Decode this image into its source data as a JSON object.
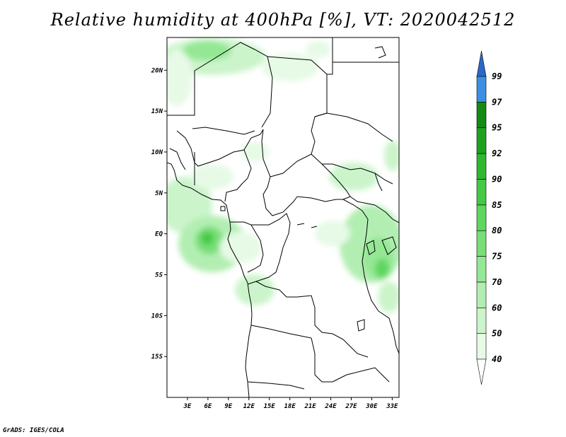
{
  "title": "Relative humidity at 400hPa [%], VT: 2020042512",
  "credit": "GrADS: IGES/COLA",
  "map": {
    "lon_range": [
      0,
      34
    ],
    "lat_range": [
      -20,
      24
    ],
    "lat_ticks": [
      {
        "value": 20,
        "label": "20N"
      },
      {
        "value": 15,
        "label": "15N"
      },
      {
        "value": 10,
        "label": "10N"
      },
      {
        "value": 5,
        "label": "5N"
      },
      {
        "value": 0,
        "label": "EQ"
      },
      {
        "value": -5,
        "label": "5S"
      },
      {
        "value": -10,
        "label": "10S"
      },
      {
        "value": -15,
        "label": "15S"
      }
    ],
    "lon_ticks": [
      {
        "value": 3,
        "label": "3E"
      },
      {
        "value": 6,
        "label": "6E"
      },
      {
        "value": 9,
        "label": "9E"
      },
      {
        "value": 12,
        "label": "12E"
      },
      {
        "value": 15,
        "label": "15E"
      },
      {
        "value": 18,
        "label": "18E"
      },
      {
        "value": 21,
        "label": "21E"
      },
      {
        "value": 24,
        "label": "24E"
      },
      {
        "value": 27,
        "label": "27E"
      },
      {
        "value": 30,
        "label": "30E"
      },
      {
        "value": 33,
        "label": "33E"
      }
    ]
  },
  "colorbar": {
    "levels": [
      {
        "label": "40",
        "color": "#e6fae6"
      },
      {
        "label": "50",
        "color": "#cbf4cb"
      },
      {
        "label": "60",
        "color": "#b2eeb2"
      },
      {
        "label": "70",
        "color": "#94e794"
      },
      {
        "label": "75",
        "color": "#78de78"
      },
      {
        "label": "80",
        "color": "#5fd65f"
      },
      {
        "label": "85",
        "color": "#44c944"
      },
      {
        "label": "90",
        "color": "#2fb72f"
      },
      {
        "label": "92",
        "color": "#1ea21e"
      },
      {
        "label": "95",
        "color": "#138a13"
      },
      {
        "label": "97",
        "color": "#3c8fe3"
      },
      {
        "label": "99",
        "color": "#2070d8"
      }
    ],
    "over_color": "#2a68c8",
    "under_color": "#ffffff"
  }
}
